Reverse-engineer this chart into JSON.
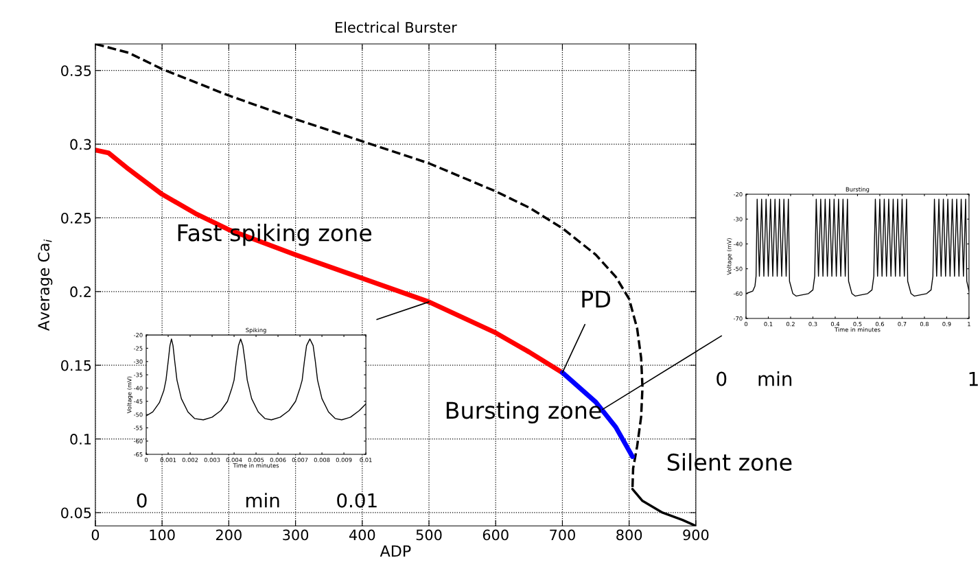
{
  "chart_data": [
    {
      "type": "line",
      "title": "Electrical Burster",
      "xlabel": "ADP",
      "ylabel": "Average Ca$_{i}$",
      "xlim": [
        0,
        900
      ],
      "ylim": [
        0.041,
        0.368
      ],
      "xticks": [
        0,
        100,
        200,
        300,
        400,
        500,
        600,
        700,
        800,
        900
      ],
      "yticks": [
        0.05,
        0.1,
        0.15,
        0.2,
        0.25,
        0.3,
        0.35
      ],
      "grid": true,
      "series": [
        {
          "color": "#000000",
          "line_style": "dashed",
          "x": [
            0,
            50,
            100,
            200,
            300,
            400,
            500,
            600,
            650,
            700,
            750,
            780,
            800,
            812,
            818,
            820,
            818,
            812,
            806,
            805
          ],
          "values": [
            0.368,
            0.362,
            0.351,
            0.333,
            0.317,
            0.302,
            0.287,
            0.268,
            0.257,
            0.243,
            0.225,
            0.21,
            0.195,
            0.175,
            0.155,
            0.135,
            0.115,
            0.095,
            0.08,
            0.066
          ]
        },
        {
          "color": "#000000",
          "line_style": "solid",
          "x": [
            805,
            820,
            850,
            880,
            900
          ],
          "values": [
            0.066,
            0.058,
            0.05,
            0.045,
            0.041
          ]
        },
        {
          "color": "#ff0000",
          "line_style": "solid",
          "x": [
            0,
            20,
            50,
            100,
            150,
            200,
            300,
            400,
            500,
            600,
            650,
            700
          ],
          "values": [
            0.296,
            0.294,
            0.283,
            0.266,
            0.253,
            0.242,
            0.225,
            0.209,
            0.193,
            0.172,
            0.159,
            0.145
          ]
        },
        {
          "color": "#0000ff",
          "line_style": "solid",
          "x": [
            700,
            750,
            780,
            805
          ],
          "values": [
            0.145,
            0.125,
            0.108,
            0.088
          ]
        }
      ],
      "annotations": [
        "Fast spiking zone",
        {
          "text": "PD",
          "x": 700,
          "y": 0.145
        },
        {
          "text": "Bursting zone",
          "x": 760,
          "y": 0.12
        },
        "Silent zone"
      ]
    },
    {
      "type": "line",
      "title": "Spiking",
      "xlabel": "Time in minutes",
      "ylabel": "Voltage (mV)",
      "xlim": [
        0,
        0.01
      ],
      "ylim": [
        -65,
        -20
      ],
      "xticks": [
        0,
        0.001,
        0.002,
        0.003,
        0.004,
        0.005,
        0.006,
        0.007,
        0.008,
        0.009,
        0.01
      ],
      "yticks": [
        -65,
        -60,
        -55,
        -50,
        -45,
        -40,
        -35,
        -30,
        -25,
        -20
      ],
      "series": [
        {
          "color": "#000000",
          "line_style": "solid",
          "x": [
            0,
            0.0003,
            0.0006,
            0.0008,
            0.0009,
            0.001,
            0.00108,
            0.00115,
            0.00122,
            0.0013,
            0.0014,
            0.0016,
            0.0019,
            0.0022,
            0.0026,
            0.003,
            0.0034,
            0.0037,
            0.0039,
            0.004,
            0.0041,
            0.0042,
            0.0043,
            0.0044,
            0.0045,
            0.0046,
            0.0048,
            0.0051,
            0.0054,
            0.0057,
            0.0061,
            0.0065,
            0.0068,
            0.007,
            0.0071,
            0.0072,
            0.0073,
            0.00745,
            0.0076,
            0.0077,
            0.0078,
            0.008,
            0.0083,
            0.0086,
            0.0089,
            0.0093,
            0.0097,
            0.01
          ],
          "values": [
            -50.5,
            -49,
            -45.5,
            -41,
            -37,
            -30,
            -24,
            -21.5,
            -24,
            -30,
            -37,
            -44,
            -49,
            -51.5,
            -52,
            -51,
            -48.5,
            -45,
            -40,
            -37,
            -30,
            -24,
            -21.5,
            -24,
            -30,
            -37,
            -44,
            -49,
            -51.5,
            -52,
            -51,
            -48.5,
            -45,
            -40,
            -37,
            -30,
            -24,
            -21.5,
            -24,
            -30,
            -37,
            -44,
            -49,
            -51.5,
            -52,
            -51,
            -48.5,
            -46
          ]
        }
      ],
      "annotations": [
        "0",
        "min",
        "0.01"
      ]
    },
    {
      "type": "line",
      "title": "Bursting",
      "xlabel": "Time in minutes",
      "ylabel": "Voltage (mV)",
      "xlim": [
        0,
        1
      ],
      "ylim": [
        -70,
        -20
      ],
      "xticks": [
        0,
        0.1,
        0.2,
        0.3,
        0.4,
        0.5,
        0.6,
        0.7,
        0.8,
        0.9,
        1
      ],
      "yticks": [
        -70,
        -60,
        -50,
        -40,
        -30,
        -20
      ],
      "series": [
        {
          "color": "#000000",
          "line_style": "solid",
          "x": [
            0,
            0.03,
            0.04,
            0.045,
            0.05,
            0.06,
            0.07,
            0.08,
            0.09,
            0.1,
            0.11,
            0.12,
            0.13,
            0.14,
            0.15,
            0.16,
            0.17,
            0.18,
            0.19,
            0.195,
            0.21,
            0.225,
            0.28,
            0.3,
            0.308,
            0.315,
            0.325,
            0.335,
            0.345,
            0.355,
            0.365,
            0.375,
            0.385,
            0.395,
            0.405,
            0.415,
            0.425,
            0.435,
            0.445,
            0.455,
            0.46,
            0.475,
            0.49,
            0.545,
            0.565,
            0.573,
            0.58,
            0.59,
            0.6,
            0.61,
            0.62,
            0.63,
            0.64,
            0.65,
            0.66,
            0.67,
            0.68,
            0.69,
            0.7,
            0.71,
            0.72,
            0.725,
            0.74,
            0.755,
            0.81,
            0.83,
            0.838,
            0.845,
            0.855,
            0.865,
            0.875,
            0.885,
            0.895,
            0.905,
            0.915,
            0.925,
            0.935,
            0.945,
            0.955,
            0.965,
            0.975,
            0.985,
            0.99,
            1.0
          ],
          "values": [
            -60,
            -59,
            -57,
            -53,
            -22,
            -53,
            -22,
            -53,
            -22,
            -53,
            -22,
            -53,
            -22,
            -53,
            -22,
            -53,
            -22,
            -53,
            -22,
            -55,
            -60,
            -61,
            -60,
            -58.5,
            -53,
            -22,
            -53,
            -22,
            -53,
            -22,
            -53,
            -22,
            -53,
            -22,
            -53,
            -22,
            -53,
            -22,
            -53,
            -22,
            -55,
            -60,
            -61,
            -60,
            -58.5,
            -53,
            -22,
            -53,
            -22,
            -53,
            -22,
            -53,
            -22,
            -53,
            -22,
            -53,
            -22,
            -53,
            -22,
            -53,
            -22,
            -55,
            -60,
            -61,
            -60,
            -58.5,
            -53,
            -22,
            -53,
            -22,
            -53,
            -22,
            -53,
            -22,
            -53,
            -22,
            -53,
            -22,
            -53,
            -22,
            -53,
            -22,
            -55,
            -59
          ]
        }
      ],
      "annotations": [
        "0",
        "min",
        "1"
      ]
    }
  ]
}
